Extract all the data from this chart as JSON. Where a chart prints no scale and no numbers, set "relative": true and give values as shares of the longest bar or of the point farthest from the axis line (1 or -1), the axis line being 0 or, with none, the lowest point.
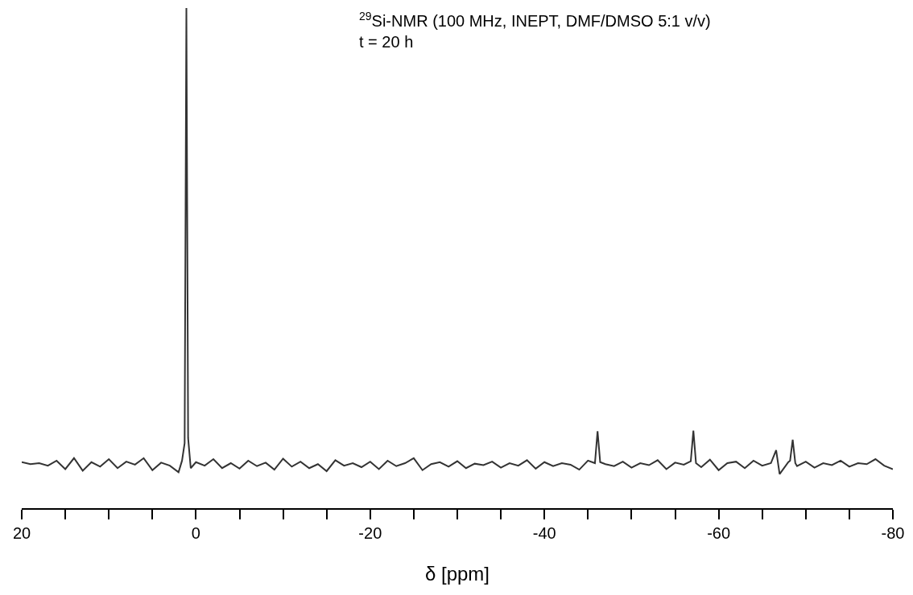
{
  "chart_data": {
    "type": "line",
    "relative": true,
    "xlabel": "δ [ppm]",
    "annotations": [
      "$^{29}$Si-NMR (100 MHz, INEPT, DMF/DMSO 5:1 v/v)",
      "t = 20 h"
    ],
    "xlim": [
      20,
      -80
    ],
    "xticks": [
      20,
      {
        "value": 15,
        "label": null
      },
      {
        "value": 10,
        "label": null
      },
      {
        "value": 5,
        "label": null
      },
      0,
      {
        "value": -5,
        "label": null
      },
      {
        "value": -10,
        "label": null
      },
      {
        "value": -15,
        "label": null
      },
      -20,
      {
        "value": -25,
        "label": null
      },
      {
        "value": -30,
        "label": null
      },
      {
        "value": -35,
        "label": null
      },
      -40,
      {
        "value": -45,
        "label": null
      },
      {
        "value": -50,
        "label": null
      },
      {
        "value": -55,
        "label": null
      },
      -60,
      {
        "value": -65,
        "label": null
      },
      {
        "value": -70,
        "label": null
      },
      {
        "value": -75,
        "label": null
      },
      -80
    ],
    "marker": "none",
    "line_style": "solid",
    "series": [
      {
        "color": "#333333",
        "x": [
          20,
          19,
          18,
          17,
          16,
          15,
          14,
          13,
          12,
          11,
          10,
          9,
          8,
          7,
          6,
          5,
          4,
          3,
          2,
          1.6,
          1.3,
          1.1,
          0.9,
          0.6,
          0,
          -1,
          -2,
          -3,
          -4,
          -5,
          -6,
          -7,
          -8,
          -9,
          -10,
          -11,
          -12,
          -13,
          -14,
          -15,
          -16,
          -17,
          -18,
          -19,
          -20,
          -21,
          -22,
          -23,
          -24,
          -25,
          -26,
          -27,
          -28,
          -29,
          -30,
          -31,
          -32,
          -33,
          -34,
          -35,
          -36,
          -37,
          -38,
          -39,
          -40,
          -41,
          -42,
          -43,
          -44,
          -45,
          -45.8,
          -46.1,
          -46.4,
          -47,
          -48,
          -49,
          -50,
          -51,
          -52,
          -53,
          -54,
          -55,
          -56,
          -56.8,
          -57.1,
          -57.4,
          -58,
          -59,
          -60,
          -61,
          -62,
          -63,
          -64,
          -65,
          -66,
          -66.6,
          -67,
          -68,
          -68.2,
          -68.5,
          -68.8,
          -69,
          -70,
          -71,
          -72,
          -73,
          -74,
          -75,
          -76,
          -77,
          -78,
          -79,
          -80
        ],
        "values": [
          0.092,
          0.088,
          0.09,
          0.085,
          0.095,
          0.078,
          0.1,
          0.075,
          0.092,
          0.083,
          0.098,
          0.08,
          0.093,
          0.087,
          0.1,
          0.076,
          0.091,
          0.085,
          0.072,
          0.095,
          0.13,
          1.0,
          0.14,
          0.08,
          0.092,
          0.085,
          0.098,
          0.08,
          0.09,
          0.079,
          0.095,
          0.084,
          0.091,
          0.077,
          0.099,
          0.083,
          0.093,
          0.08,
          0.088,
          0.074,
          0.096,
          0.085,
          0.09,
          0.082,
          0.093,
          0.078,
          0.095,
          0.084,
          0.09,
          0.1,
          0.076,
          0.088,
          0.092,
          0.083,
          0.094,
          0.08,
          0.089,
          0.086,
          0.093,
          0.081,
          0.09,
          0.085,
          0.096,
          0.079,
          0.092,
          0.084,
          0.09,
          0.087,
          0.077,
          0.095,
          0.09,
          0.154,
          0.092,
          0.088,
          0.084,
          0.093,
          0.081,
          0.09,
          0.086,
          0.096,
          0.078,
          0.091,
          0.087,
          0.094,
          0.155,
          0.09,
          0.082,
          0.097,
          0.076,
          0.09,
          0.093,
          0.08,
          0.095,
          0.085,
          0.09,
          0.116,
          0.068,
          0.092,
          0.095,
          0.137,
          0.09,
          0.084,
          0.093,
          0.081,
          0.09,
          0.086,
          0.095,
          0.083,
          0.09,
          0.088,
          0.098,
          0.085,
          0.078
        ]
      }
    ]
  }
}
